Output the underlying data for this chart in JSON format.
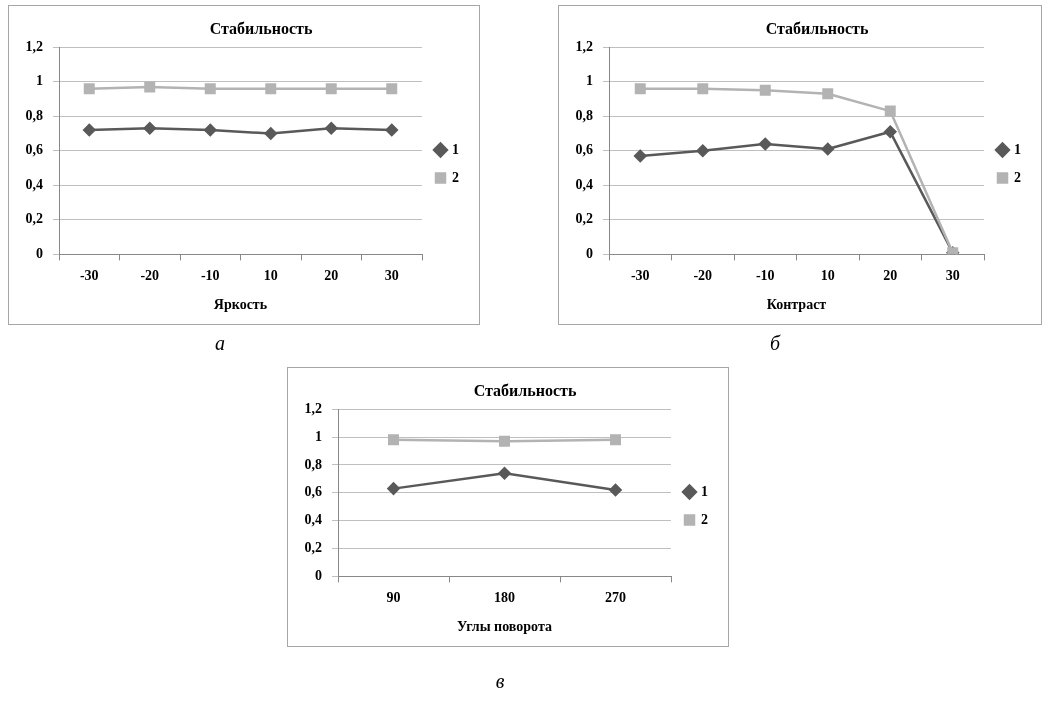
{
  "chart_data": [
    {
      "type": "line",
      "title": "Стабильность",
      "xlabel": "Яркость",
      "categories": [
        "-30",
        "-20",
        "-10",
        "10",
        "20",
        "30"
      ],
      "series": [
        {
          "name": "1",
          "color": "#595959",
          "marker": "diamond",
          "values": [
            0.72,
            0.73,
            0.72,
            0.7,
            0.73,
            0.72
          ]
        },
        {
          "name": "2",
          "color": "#b3b3b3",
          "marker": "square",
          "values": [
            0.96,
            0.97,
            0.96,
            0.96,
            0.96,
            0.96
          ]
        }
      ],
      "ylim": [
        0,
        1.2
      ],
      "yticks": [
        {
          "value": 0,
          "label": "0"
        },
        {
          "value": 0.2,
          "label": "0,2"
        },
        {
          "value": 0.4,
          "label": "0,4"
        },
        {
          "value": 0.6,
          "label": "0,6"
        },
        {
          "value": 0.8,
          "label": "0,8"
        },
        {
          "value": 1,
          "label": "1"
        },
        {
          "value": 1.2,
          "label": "1,2"
        }
      ],
      "grid": "y",
      "legend": "right",
      "annotations": [
        "а"
      ]
    },
    {
      "type": "line",
      "title": "Стабильность",
      "xlabel": "Контраст",
      "categories": [
        "-30",
        "-20",
        "-10",
        "10",
        "20",
        "30"
      ],
      "series": [
        {
          "name": "1",
          "color": "#595959",
          "marker": "diamond",
          "values": [
            0.57,
            0.6,
            0.64,
            0.61,
            0.71,
            0.01
          ]
        },
        {
          "name": "2",
          "color": "#b3b3b3",
          "marker": "square",
          "values": [
            0.96,
            0.96,
            0.95,
            0.93,
            0.83,
            0.01
          ]
        }
      ],
      "ylim": [
        0,
        1.2
      ],
      "yticks": [
        {
          "value": 0,
          "label": "0"
        },
        {
          "value": 0.2,
          "label": "0,2"
        },
        {
          "value": 0.4,
          "label": "0,4"
        },
        {
          "value": 0.6,
          "label": "0,6"
        },
        {
          "value": 0.8,
          "label": "0,8"
        },
        {
          "value": 1,
          "label": "1"
        },
        {
          "value": 1.2,
          "label": "1,2"
        }
      ],
      "grid": "y",
      "legend": "right",
      "annotations": [
        "б"
      ]
    },
    {
      "type": "line",
      "title": "Стабильность",
      "xlabel": "Углы поворота",
      "categories": [
        "90",
        "180",
        "270"
      ],
      "series": [
        {
          "name": "1",
          "color": "#595959",
          "marker": "diamond",
          "values": [
            0.63,
            0.74,
            0.62
          ]
        },
        {
          "name": "2",
          "color": "#b3b3b3",
          "marker": "square",
          "values": [
            0.98,
            0.97,
            0.98
          ]
        }
      ],
      "ylim": [
        0,
        1.2
      ],
      "yticks": [
        {
          "value": 0,
          "label": "0"
        },
        {
          "value": 0.2,
          "label": "0,2"
        },
        {
          "value": 0.4,
          "label": "0,4"
        },
        {
          "value": 0.6,
          "label": "0,6"
        },
        {
          "value": 0.8,
          "label": "0,8"
        },
        {
          "value": 1,
          "label": "1"
        },
        {
          "value": 1.2,
          "label": "1,2"
        }
      ],
      "grid": "y",
      "legend": "right",
      "annotations": [
        "в"
      ]
    }
  ]
}
